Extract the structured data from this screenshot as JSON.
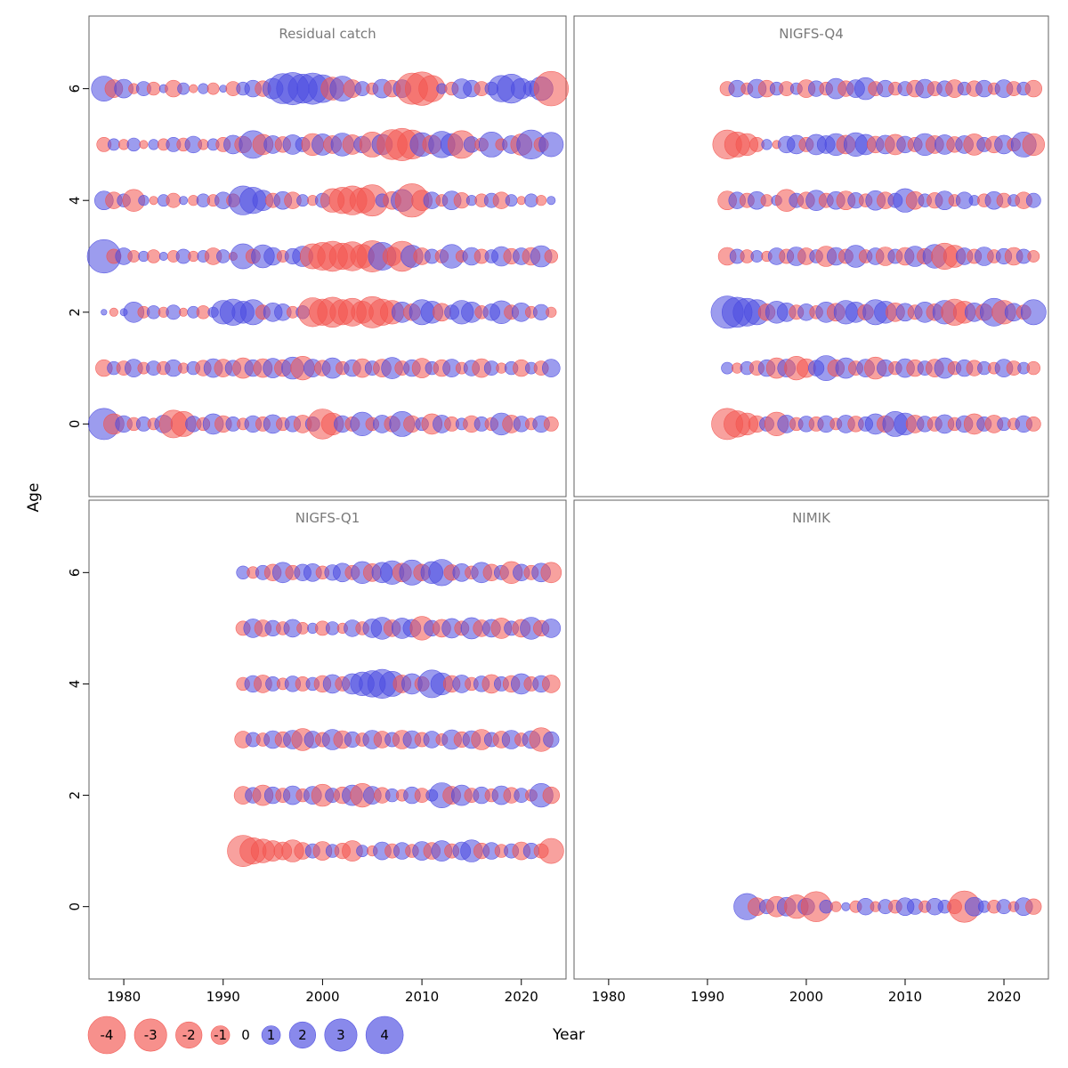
{
  "chart_data": {
    "type": "bubble",
    "title": "",
    "xlabel": "Year",
    "ylabel": "Age",
    "x_ticks": [
      1980,
      1990,
      2000,
      2010,
      2020
    ],
    "y_ticks": [
      0,
      2,
      4,
      6
    ],
    "x_range": [
      1976.5,
      2024.5
    ],
    "y_range": [
      -1.3,
      7.3
    ],
    "bubble_scale": 10.5,
    "colors": {
      "negative": "#f2544e",
      "positive": "#4a4ae0",
      "opacity": 0.55,
      "panel_border": "#606060",
      "title": "#7a7a7a"
    },
    "legend": {
      "values": [
        -4,
        -3,
        -2,
        -1,
        0,
        1,
        2,
        3,
        4
      ]
    },
    "panels": [
      {
        "title": "Residual catch",
        "row": 0,
        "col": 0,
        "series": [
          {
            "age": 6,
            "start_year": 1978,
            "values": [
              1.8,
              -0.9,
              1.0,
              -0.3,
              0.6,
              -0.5,
              0.2,
              -0.8,
              0.4,
              -0.2,
              0.3,
              -0.4,
              0.15,
              -0.6,
              0.5,
              0.8,
              -0.7,
              1.2,
              2.6,
              3.0,
              2.4,
              2.8,
              2.2,
              -1.5,
              1.8,
              -0.9,
              0.6,
              -0.4,
              1.0,
              -0.8,
              0.9,
              -2.8,
              -3.2,
              -2.0,
              0.3,
              -0.5,
              1.1,
              0.8,
              -0.6,
              0.5,
              2.0,
              2.4,
              1.2,
              0.7,
              1.6,
              -3.4
            ]
          },
          {
            "age": 5,
            "start_year": 1978,
            "values": [
              -0.6,
              0.4,
              -0.3,
              0.5,
              -0.2,
              0.3,
              -0.4,
              0.6,
              -0.5,
              0.8,
              -0.3,
              0.4,
              -0.6,
              1.0,
              -0.8,
              2.2,
              -1.2,
              0.9,
              -0.7,
              1.1,
              0.6,
              -1.4,
              1.3,
              -0.9,
              1.5,
              -1.1,
              0.8,
              -1.8,
              1.2,
              -2.6,
              -3.0,
              -2.4,
              1.6,
              -1.0,
              2.0,
              1.4,
              -2.2,
              0.7,
              -0.5,
              1.8,
              -0.4,
              0.9,
              -1.3,
              2.4,
              -0.6,
              1.7
            ]
          },
          {
            "age": 4,
            "start_year": 1978,
            "values": [
              1.0,
              -0.8,
              0.5,
              -1.4,
              0.3,
              -0.2,
              0.4,
              -0.6,
              0.2,
              -0.3,
              0.5,
              -0.4,
              0.8,
              -0.5,
              2.4,
              2.0,
              1.2,
              -0.6,
              0.9,
              -0.8,
              0.4,
              -0.3,
              0.6,
              -1.6,
              -2.0,
              -2.4,
              -1.8,
              -2.8,
              0.5,
              -0.9,
              1.4,
              -3.2,
              -1.2,
              0.8,
              -0.4,
              1.0,
              -0.7,
              0.3,
              -0.5,
              0.6,
              -0.8,
              0.4,
              -0.2,
              0.5,
              -0.3,
              0.2
            ]
          },
          {
            "age": 3,
            "start_year": 1978,
            "values": [
              3.2,
              -0.6,
              0.8,
              -0.4,
              0.3,
              -0.5,
              0.2,
              -0.4,
              0.6,
              -0.3,
              0.4,
              -0.8,
              0.5,
              -0.2,
              1.8,
              -0.6,
              1.5,
              0.9,
              -0.4,
              0.7,
              1.2,
              -1.8,
              -2.2,
              -2.6,
              -2.0,
              -2.4,
              -1.6,
              -2.8,
              2.2,
              -1.0,
              -2.6,
              1.4,
              -0.8,
              0.6,
              -0.5,
              1.6,
              -0.4,
              0.9,
              -0.6,
              0.5,
              1.1,
              -0.7,
              0.8,
              -0.9,
              1.3,
              -0.5
            ]
          },
          {
            "age": 2,
            "start_year": 1978,
            "values": [
              0.1,
              -0.2,
              0.15,
              1.2,
              -0.4,
              0.5,
              -0.3,
              0.6,
              -0.2,
              0.4,
              -0.5,
              0.3,
              1.6,
              2.0,
              1.4,
              1.8,
              -0.6,
              1.0,
              0.8,
              -0.4,
              0.5,
              -2.4,
              -2.0,
              -2.6,
              -1.8,
              -2.2,
              -1.4,
              -2.8,
              -2.0,
              -1.6,
              1.2,
              -0.8,
              1.8,
              1.4,
              -0.9,
              0.6,
              1.6,
              1.2,
              -0.5,
              0.8,
              1.5,
              -0.6,
              1.0,
              -0.4,
              0.7,
              -0.3
            ]
          },
          {
            "age": 1,
            "start_year": 1978,
            "values": [
              -0.8,
              0.5,
              -0.6,
              0.9,
              -0.4,
              0.6,
              -0.5,
              0.8,
              -0.3,
              0.5,
              -0.7,
              1.0,
              -0.9,
              0.7,
              -1.2,
              0.8,
              -1.0,
              1.1,
              -0.8,
              1.4,
              -1.6,
              0.9,
              -0.7,
              1.2,
              -0.5,
              0.8,
              -1.0,
              0.6,
              -0.9,
              1.3,
              -0.6,
              0.8,
              -1.1,
              0.5,
              -0.8,
              0.9,
              -0.4,
              0.7,
              -1.0,
              0.6,
              -0.3,
              0.5,
              -0.8,
              0.4,
              -0.6,
              0.9
            ]
          },
          {
            "age": 0,
            "start_year": 1978,
            "values": [
              2.8,
              -1.2,
              0.8,
              -0.5,
              0.6,
              -0.4,
              0.9,
              -2.2,
              -1.8,
              0.7,
              -0.5,
              1.2,
              -0.8,
              0.6,
              -0.4,
              0.8,
              -0.6,
              1.0,
              -0.5,
              0.7,
              -0.9,
              0.6,
              -2.6,
              -1.4,
              0.8,
              -0.6,
              1.6,
              -0.5,
              0.9,
              -0.7,
              1.8,
              -0.8,
              0.5,
              -1.2,
              0.9,
              -0.6,
              0.4,
              -0.8,
              0.6,
              -0.5,
              1.4,
              -0.9,
              0.7,
              -0.4,
              0.8,
              -0.6
            ]
          }
        ]
      },
      {
        "title": "NIGFS-Q4",
        "row": 0,
        "col": 1,
        "series": [
          {
            "age": 6,
            "start_year": 1992,
            "values": [
              -0.6,
              0.8,
              -0.4,
              1.0,
              -0.8,
              0.5,
              -0.6,
              0.4,
              -0.9,
              0.7,
              -0.5,
              1.2,
              -0.7,
              0.9,
              1.4,
              -0.6,
              0.8,
              -0.5,
              0.6,
              -0.8,
              1.0,
              -0.6,
              0.7,
              -0.9,
              0.5,
              -0.7,
              0.8,
              -0.4,
              0.9,
              -0.6,
              0.5,
              -0.8
            ]
          },
          {
            "age": 5,
            "start_year": 1992,
            "values": [
              -2.4,
              -1.8,
              -1.4,
              -0.6,
              0.3,
              -0.2,
              0.8,
              1.0,
              -0.6,
              1.2,
              0.9,
              1.4,
              -1.0,
              1.6,
              1.2,
              -0.8,
              1.0,
              -1.2,
              0.8,
              -0.6,
              1.4,
              -0.9,
              1.1,
              -0.7,
              0.9,
              -1.3,
              0.6,
              -0.8,
              1.0,
              -0.5,
              1.8,
              -1.4
            ]
          },
          {
            "age": 4,
            "start_year": 1992,
            "values": [
              -1.0,
              0.8,
              -0.6,
              0.9,
              -0.4,
              0.3,
              -1.4,
              0.6,
              -0.8,
              1.2,
              -0.6,
              0.9,
              -1.0,
              0.7,
              -0.5,
              1.1,
              -0.8,
              0.6,
              1.6,
              -0.9,
              0.5,
              -0.7,
              1.0,
              -0.4,
              0.8,
              0.3,
              -0.5,
              0.9,
              -0.6,
              0.4,
              -0.8,
              0.6
            ]
          },
          {
            "age": 3,
            "start_year": 1992,
            "values": [
              -0.9,
              0.6,
              -0.5,
              0.4,
              -0.3,
              0.8,
              -0.6,
              1.0,
              -0.8,
              0.5,
              -1.2,
              0.9,
              -0.6,
              1.4,
              -0.5,
              0.8,
              -1.0,
              0.6,
              -0.9,
              1.2,
              -0.7,
              1.6,
              -2.0,
              -1.4,
              0.8,
              -0.6,
              1.0,
              -0.5,
              0.7,
              -0.9,
              0.6,
              -0.4
            ]
          },
          {
            "age": 2,
            "start_year": 1992,
            "values": [
              3.0,
              2.6,
              2.2,
              1.8,
              -0.8,
              1.4,
              1.0,
              -0.6,
              0.8,
              -0.5,
              1.2,
              -0.9,
              1.6,
              1.2,
              -0.7,
              1.8,
              1.4,
              -1.0,
              0.9,
              -0.6,
              1.2,
              -0.8,
              1.6,
              -2.0,
              -1.4,
              1.0,
              -0.8,
              2.2,
              -1.6,
              0.9,
              -0.6,
              1.8
            ]
          },
          {
            "age": 1,
            "start_year": 1992,
            "values": [
              0.4,
              -0.3,
              0.5,
              -0.6,
              0.8,
              -1.2,
              0.9,
              -1.6,
              -1.0,
              0.7,
              1.8,
              -0.8,
              1.2,
              -0.6,
              0.9,
              -1.4,
              0.8,
              -0.5,
              1.0,
              -0.8,
              0.6,
              -0.9,
              1.2,
              -0.5,
              0.8,
              -0.7,
              0.5,
              -0.4,
              0.9,
              -0.6,
              0.4,
              -0.5
            ]
          },
          {
            "age": 0,
            "start_year": 1992,
            "values": [
              -2.8,
              -2.0,
              -1.4,
              -0.8,
              0.6,
              -1.6,
              0.9,
              -0.5,
              0.7,
              -0.6,
              0.8,
              -0.4,
              0.9,
              -0.7,
              0.6,
              1.2,
              -0.8,
              1.8,
              1.4,
              -0.9,
              0.7,
              -0.6,
              1.0,
              -0.5,
              0.8,
              -1.2,
              0.6,
              -0.9,
              0.5,
              -0.4,
              0.8,
              -0.6
            ]
          }
        ]
      },
      {
        "title": "NIGFS-Q1",
        "row": 1,
        "col": 0,
        "series": [
          {
            "age": 6,
            "start_year": 1992,
            "values": [
              0.5,
              -0.4,
              0.6,
              -0.8,
              1.2,
              -0.6,
              0.8,
              0.9,
              -0.5,
              0.7,
              1.0,
              -0.6,
              1.4,
              -0.9,
              1.2,
              1.6,
              -1.0,
              1.8,
              -0.8,
              1.4,
              2.0,
              -0.7,
              0.9,
              -0.5,
              1.2,
              -0.8,
              0.6,
              -1.4,
              0.8,
              -0.6,
              1.0,
              -1.2
            ]
          },
          {
            "age": 5,
            "start_year": 1992,
            "values": [
              -0.6,
              1.0,
              -0.8,
              0.7,
              -0.5,
              0.9,
              -0.4,
              0.3,
              -0.6,
              0.5,
              -0.3,
              0.8,
              -0.5,
              1.0,
              1.4,
              -0.8,
              1.2,
              0.9,
              -1.6,
              0.7,
              -0.9,
              1.1,
              -0.6,
              1.3,
              -0.8,
              0.9,
              -1.2,
              0.6,
              -0.9,
              1.4,
              -0.7,
              1.0
            ]
          },
          {
            "age": 4,
            "start_year": 1992,
            "values": [
              -0.5,
              0.8,
              -0.9,
              0.6,
              -0.4,
              0.7,
              -0.6,
              0.5,
              -0.8,
              1.0,
              -0.6,
              1.2,
              1.6,
              2.0,
              2.4,
              1.8,
              -0.9,
              1.2,
              -0.6,
              2.2,
              1.4,
              -0.8,
              0.9,
              -0.5,
              0.7,
              -1.0,
              0.6,
              -0.8,
              1.2,
              -0.6,
              0.8,
              -0.9
            ]
          },
          {
            "age": 3,
            "start_year": 1992,
            "values": [
              -0.8,
              0.6,
              -0.5,
              0.9,
              -0.7,
              1.0,
              -1.4,
              0.8,
              -0.6,
              1.2,
              -0.9,
              0.7,
              -0.5,
              1.0,
              -0.8,
              0.6,
              -1.0,
              0.9,
              -0.6,
              0.8,
              -0.4,
              1.1,
              -0.7,
              0.9,
              -1.2,
              0.6,
              -0.8,
              1.0,
              -0.5,
              0.9,
              -1.6,
              0.7
            ]
          },
          {
            "age": 2,
            "start_year": 1992,
            "values": [
              -0.9,
              0.7,
              -1.2,
              0.8,
              -0.6,
              1.0,
              -0.5,
              0.9,
              -1.4,
              0.6,
              -0.8,
              1.2,
              -1.6,
              0.9,
              -0.7,
              0.5,
              -0.4,
              0.8,
              -0.6,
              0.4,
              1.8,
              -0.9,
              1.2,
              -0.6,
              0.8,
              -0.5,
              1.0,
              -0.7,
              0.6,
              -0.4,
              1.6,
              -0.8
            ]
          },
          {
            "age": 1,
            "start_year": 1992,
            "values": [
              -2.8,
              -2.0,
              -1.6,
              -1.2,
              -0.9,
              -1.4,
              -0.8,
              0.6,
              -1.0,
              0.5,
              -0.7,
              -1.2,
              0.4,
              -0.3,
              0.9,
              -0.6,
              0.8,
              -0.5,
              1.0,
              -0.8,
              1.2,
              -0.6,
              0.9,
              1.4,
              -0.7,
              0.8,
              -0.5,
              0.6,
              -0.9,
              0.7,
              -0.6,
              -1.8
            ]
          }
        ]
      },
      {
        "title": "NIMIK",
        "row": 1,
        "col": 1,
        "series": [
          {
            "age": 0,
            "start_year": 1994,
            "values": [
              2.0,
              -0.9,
              0.6,
              -1.2,
              1.0,
              -1.6,
              0.8,
              -2.6,
              0.5,
              -0.3,
              0.2,
              -0.4,
              0.8,
              -0.3,
              0.6,
              -0.5,
              0.9,
              0.7,
              -0.4,
              0.8,
              0.5,
              -0.6,
              -2.8,
              1.0,
              0.4,
              -0.5,
              0.6,
              -0.3,
              0.9,
              -0.7
            ]
          }
        ]
      }
    ]
  }
}
